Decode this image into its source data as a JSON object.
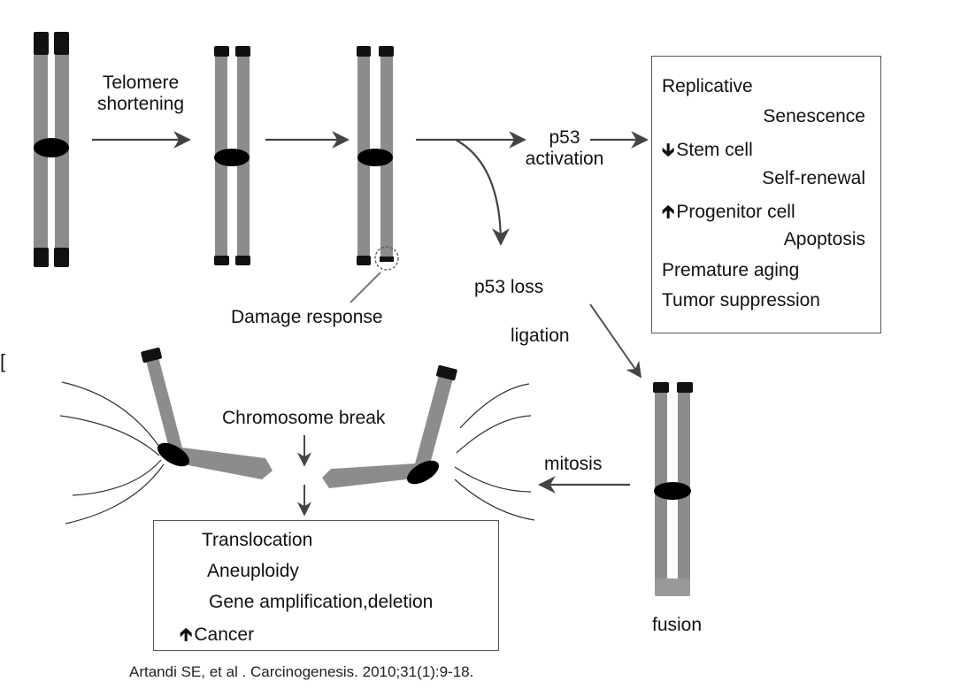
{
  "labels": {
    "telomere_shortening": "Telomere\nshortening",
    "damage_response": "Damage response",
    "p53_activation": "p53\nactivation",
    "p53_loss": "p53 loss",
    "ligation": "ligation",
    "chromosome_break": "Chromosome break",
    "mitosis": "mitosis",
    "fusion": "fusion",
    "side_mark": "["
  },
  "outcome_box": {
    "lines": [
      {
        "text": "Replicative",
        "glyph": ""
      },
      {
        "text": "Senescence",
        "glyph": ""
      },
      {
        "text": "Stem cell",
        "glyph": "down-arrow-icon"
      },
      {
        "text": "Self-renewal",
        "glyph": ""
      },
      {
        "text": "Progenitor cell",
        "glyph": "up-arrow-icon"
      },
      {
        "text": "Apoptosis",
        "glyph": ""
      },
      {
        "text": "Premature aging",
        "glyph": ""
      },
      {
        "text": "Tumor suppression",
        "glyph": ""
      }
    ]
  },
  "cancer_box": {
    "lines": [
      {
        "text": "Translocation",
        "glyph": ""
      },
      {
        "text": "Aneuploidy",
        "glyph": ""
      },
      {
        "text": "Gene amplification,deletion",
        "glyph": ""
      },
      {
        "text": "Cancer",
        "glyph": "up-arrow-icon"
      }
    ]
  },
  "citation": "Artandi SE, et al . Carcinogenesis. 2010;31(1):9-18.",
  "colors": {
    "arm": "#8c8c8c",
    "telomere": "#111111",
    "centromere": "#000000",
    "arrow": "#444444"
  }
}
